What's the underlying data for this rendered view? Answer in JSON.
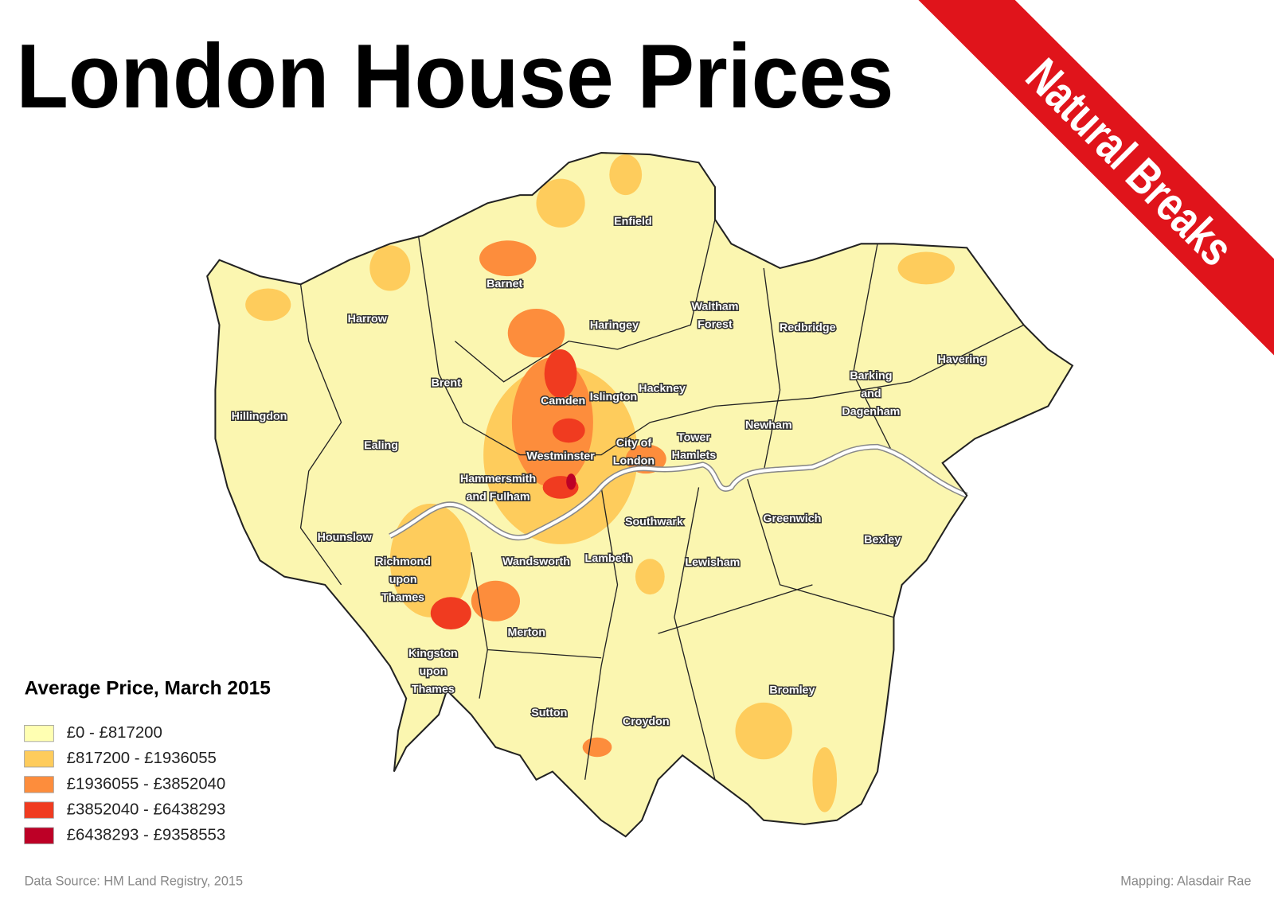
{
  "title": "London House Prices",
  "badge": "Natural Breaks",
  "boroughs": [
    [
      "Enfield"
    ],
    [
      "Barnet"
    ],
    [
      "Harrow"
    ],
    [
      "Haringey"
    ],
    [
      "Waltham",
      "Forest"
    ],
    [
      "Redbridge"
    ],
    [
      "Havering"
    ],
    [
      "Brent"
    ],
    [
      "Camden"
    ],
    [
      "Islington"
    ],
    [
      "Hackney"
    ],
    [
      "Barking",
      "and",
      "Dagenham"
    ],
    [
      "Hillingdon"
    ],
    [
      "Newham"
    ],
    [
      "Ealing"
    ],
    [
      "Tower",
      "Hamlets"
    ],
    [
      "City of",
      "London"
    ],
    [
      "Westminster"
    ],
    [
      "Hammersmith",
      "and Fulham"
    ],
    [
      "Southwark"
    ],
    [
      "Greenwich"
    ],
    [
      "Hounslow"
    ],
    [
      "Bexley"
    ],
    [
      "Richmond",
      "upon",
      "Thames"
    ],
    [
      "Wandsworth"
    ],
    [
      "Lambeth"
    ],
    [
      "Lewisham"
    ],
    [
      "Merton"
    ],
    [
      "Kingston",
      "upon",
      "Thames"
    ],
    [
      "Bromley"
    ],
    [
      "Sutton"
    ],
    [
      "Croydon"
    ]
  ],
  "legend": {
    "title": "Average Price, March 2015",
    "items": [
      {
        "label": "£0 - £817200",
        "color": "#ffffb2"
      },
      {
        "label": "£817200 - £1936055",
        "color": "#fecc5c"
      },
      {
        "label": "£1936055 - £3852040",
        "color": "#fd8d3c"
      },
      {
        "label": "£3852040 - £6438293",
        "color": "#f03b20"
      },
      {
        "label": "£6438293 - £9358553",
        "color": "#bd0026"
      }
    ]
  },
  "footer": {
    "source": "Data Source: HM Land Registry, 2015",
    "credit": "Mapping: Alasdair Rae"
  }
}
